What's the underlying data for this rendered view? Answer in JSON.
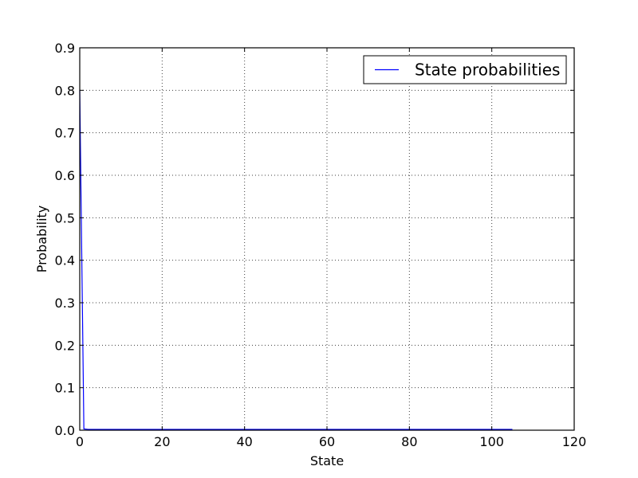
{
  "chart_data": {
    "type": "line",
    "title": "",
    "xlabel": "State",
    "ylabel": "Probability",
    "xlim": [
      0,
      120
    ],
    "ylim": [
      0,
      0.9
    ],
    "xticks": [
      0,
      20,
      40,
      60,
      80,
      100,
      120
    ],
    "yticks": [
      0.0,
      0.1,
      0.2,
      0.3,
      0.4,
      0.5,
      0.6,
      0.7,
      0.8,
      0.9
    ],
    "xtick_labels": [
      "0",
      "20",
      "40",
      "60",
      "80",
      "100",
      "120"
    ],
    "ytick_labels": [
      "0.0",
      "0.1",
      "0.2",
      "0.3",
      "0.4",
      "0.5",
      "0.6",
      "0.7",
      "0.8",
      "0.9"
    ],
    "grid": true,
    "legend_position": "top-right",
    "series": [
      {
        "name": "State probabilities",
        "color": "#0000ff",
        "x": [
          0,
          1,
          2,
          5,
          10,
          20,
          30,
          40,
          50,
          60,
          70,
          80,
          90,
          100,
          105
        ],
        "y": [
          0.8,
          0.003,
          0.002,
          0.002,
          0.002,
          0.002,
          0.002,
          0.002,
          0.002,
          0.002,
          0.002,
          0.002,
          0.002,
          0.002,
          0.002
        ]
      }
    ]
  }
}
